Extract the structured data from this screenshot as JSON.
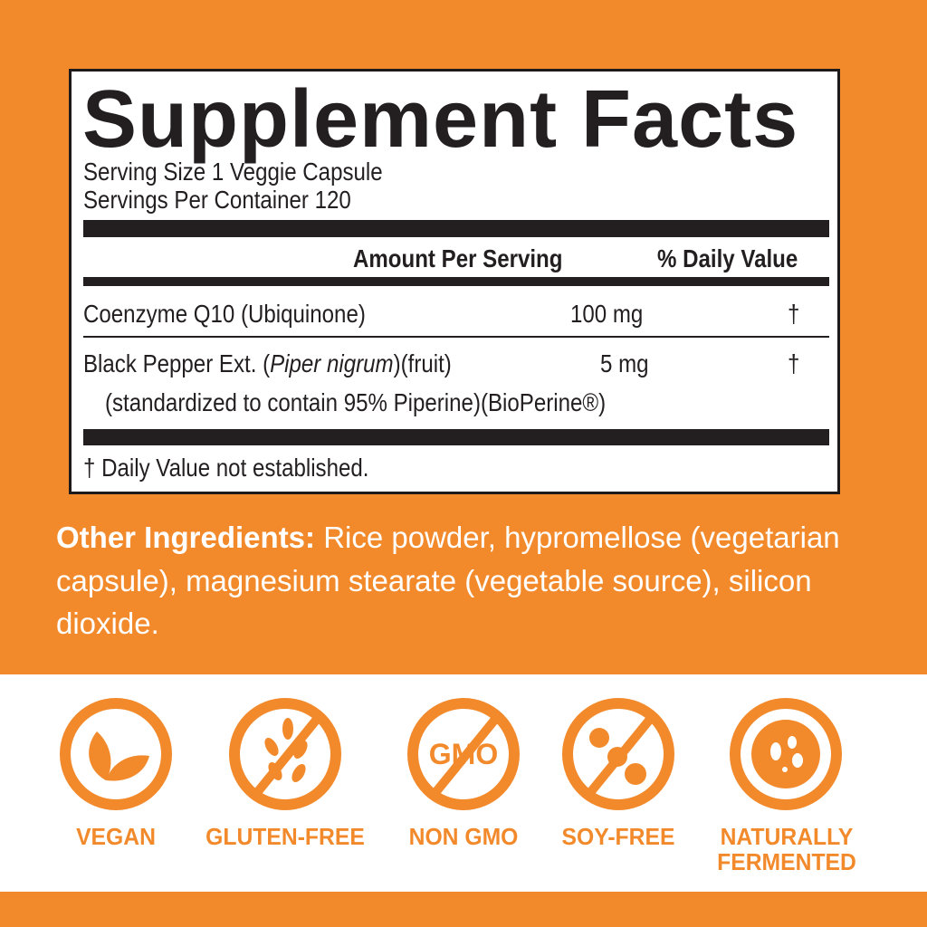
{
  "facts": {
    "title": "Supplement Facts",
    "serving_size": "Serving Size  1 Veggie Capsule",
    "servings_per_container": "Servings Per Container  120",
    "header_amount": "Amount Per Serving",
    "header_dv": "% Daily Value",
    "rows": [
      {
        "name": "Coenzyme Q10 (Ubiquinone)",
        "amount": "100 mg",
        "dv": "†"
      },
      {
        "name_pre": "Black Pepper Ext. (",
        "name_italic": "Piper nigrum",
        "name_post": ")(fruit)",
        "sub": "(standardized to contain 95% Piperine)(BioPerine®)",
        "amount": "5 mg",
        "dv": "†"
      }
    ],
    "footnote": "† Daily Value not established."
  },
  "other_ingredients": {
    "label": "Other Ingredients:",
    "text": " Rice powder, hypromellose (vegetarian capsule), magnesium stearate (vegetable source), silicon dioxide."
  },
  "badges": [
    {
      "icon": "leaf-icon",
      "label": "VEGAN"
    },
    {
      "icon": "no-wheat-icon",
      "label": "GLUTEN-FREE"
    },
    {
      "icon": "no-gmo-icon",
      "label": "NON GMO",
      "icon_text": "GMO"
    },
    {
      "icon": "no-soy-icon",
      "label": "SOY-FREE"
    },
    {
      "icon": "fermented-icon",
      "label": "NATURALLY FERMENTED"
    }
  ],
  "colors": {
    "brand_orange": "#F28A2C",
    "ink": "#231F20"
  }
}
